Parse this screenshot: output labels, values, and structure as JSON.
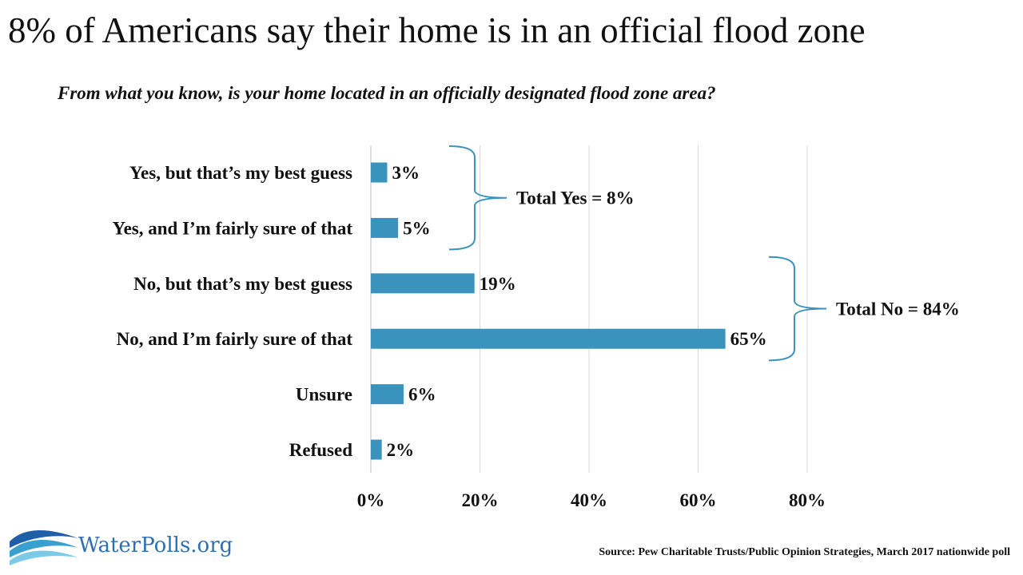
{
  "title": "8% of  Americans say their home is in an official flood zone",
  "subtitle": "From what you know, is your home located in an officially designated flood zone area?",
  "logo": {
    "name": "WaterPolls.org",
    "icon": "wave-icon"
  },
  "source": "Source: Pew Charitable Trusts/Public Opinion Strategies, March 2017 nationwide poll",
  "colors": {
    "bar": "#3a93bd",
    "bracket": "#3a93bd",
    "grid": "#d9d9d9"
  },
  "chart_data": {
    "type": "bar",
    "orientation": "horizontal",
    "categories": [
      "Yes, but that’s my best guess",
      "Yes, and I’m fairly sure of that",
      "No, but that’s my best guess",
      "No, and I’m fairly sure of that",
      "Unsure",
      "Refused"
    ],
    "values": [
      3,
      5,
      19,
      65,
      6,
      2
    ],
    "value_labels": [
      "3%",
      "5%",
      "19%",
      "65%",
      "6%",
      "2%"
    ],
    "xlim": [
      0,
      80
    ],
    "xticks": [
      0,
      20,
      40,
      60,
      80
    ],
    "xtick_labels": [
      "0%",
      "20%",
      "40%",
      "60%",
      "80%"
    ],
    "grid": true,
    "annotations": [
      {
        "text": "Total Yes = 8%",
        "spans": [
          0,
          1
        ]
      },
      {
        "text": "Total No = 84%",
        "spans": [
          2,
          3
        ]
      }
    ]
  }
}
